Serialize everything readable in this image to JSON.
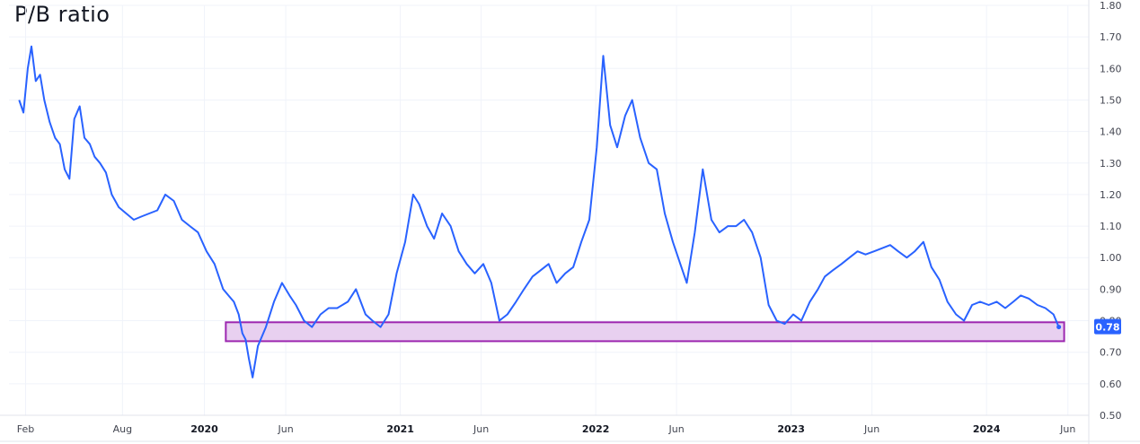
{
  "chart_data": {
    "type": "line",
    "title": "P/B ratio",
    "xlabel": "",
    "ylabel": "",
    "ylim": [
      0.5,
      1.8
    ],
    "y_ticks": [
      "1.80",
      "1.70",
      "1.60",
      "1.50",
      "1.40",
      "1.30",
      "1.20",
      "1.10",
      "1.00",
      "0.90",
      "0.80",
      "0.70",
      "0.60",
      "0.50"
    ],
    "x_ticks": [
      {
        "label": "Feb",
        "date": "2019-02-01",
        "year": false
      },
      {
        "label": "Aug",
        "date": "2019-08-01",
        "year": false
      },
      {
        "label": "2020",
        "date": "2020-01-01",
        "year": true
      },
      {
        "label": "Jun",
        "date": "2020-06-01",
        "year": false
      },
      {
        "label": "2021",
        "date": "2021-01-01",
        "year": true
      },
      {
        "label": "Jun",
        "date": "2021-06-01",
        "year": false
      },
      {
        "label": "2022",
        "date": "2022-01-01",
        "year": true
      },
      {
        "label": "Jun",
        "date": "2022-06-01",
        "year": false
      },
      {
        "label": "2023",
        "date": "2023-01-01",
        "year": true
      },
      {
        "label": "Jun",
        "date": "2023-06-01",
        "year": false
      },
      {
        "label": "2024",
        "date": "2024-01-01",
        "year": true
      },
      {
        "label": "Jun",
        "date": "2024-06-01",
        "year": false
      }
    ],
    "xlim": [
      "2019-01-01",
      "2024-07-10"
    ],
    "grid": true,
    "line_color": "#2962ff",
    "series": [
      {
        "x": [
          "2019-01-20",
          "2019-01-28",
          "2019-02-05",
          "2019-02-12",
          "2019-02-20",
          "2019-02-28",
          "2019-03-08",
          "2019-03-18",
          "2019-03-28",
          "2019-04-06",
          "2019-04-15",
          "2019-04-24",
          "2019-05-03",
          "2019-05-13",
          "2019-05-22",
          "2019-06-01",
          "2019-06-10",
          "2019-06-20",
          "2019-07-01",
          "2019-07-12",
          "2019-07-25",
          "2019-08-08",
          "2019-08-22",
          "2019-09-05",
          "2019-09-20",
          "2019-10-05",
          "2019-10-20",
          "2019-11-05",
          "2019-11-20",
          "2019-12-05",
          "2019-12-20",
          "2020-01-05",
          "2020-01-20",
          "2020-02-05",
          "2020-02-15",
          "2020-02-25",
          "2020-03-05",
          "2020-03-12",
          "2020-03-18",
          "2020-03-24",
          "2020-03-31",
          "2020-04-10",
          "2020-04-25",
          "2020-05-10",
          "2020-05-25",
          "2020-06-08",
          "2020-06-20",
          "2020-07-05",
          "2020-07-20",
          "2020-08-05",
          "2020-08-20",
          "2020-09-05",
          "2020-09-25",
          "2020-10-10",
          "2020-10-28",
          "2020-11-10",
          "2020-11-25",
          "2020-12-10",
          "2020-12-25",
          "2021-01-10",
          "2021-01-25",
          "2021-02-05",
          "2021-02-20",
          "2021-03-05",
          "2021-03-20",
          "2021-04-05",
          "2021-04-20",
          "2021-05-05",
          "2021-05-20",
          "2021-06-05",
          "2021-06-20",
          "2021-07-05",
          "2021-07-20",
          "2021-08-05",
          "2021-08-20",
          "2021-09-05",
          "2021-09-20",
          "2021-10-05",
          "2021-10-20",
          "2021-11-05",
          "2021-11-20",
          "2021-12-05",
          "2021-12-20",
          "2022-01-03",
          "2022-01-15",
          "2022-01-28",
          "2022-02-10",
          "2022-02-25",
          "2022-03-10",
          "2022-03-25",
          "2022-04-10",
          "2022-04-25",
          "2022-05-10",
          "2022-05-25",
          "2022-06-08",
          "2022-06-20",
          "2022-07-05",
          "2022-07-20",
          "2022-08-05",
          "2022-08-20",
          "2022-09-05",
          "2022-09-20",
          "2022-10-05",
          "2022-10-20",
          "2022-11-05",
          "2022-11-20",
          "2022-12-05",
          "2022-12-20",
          "2023-01-05",
          "2023-01-20",
          "2023-02-05",
          "2023-02-20",
          "2023-03-05",
          "2023-03-20",
          "2023-04-05",
          "2023-04-20",
          "2023-05-05",
          "2023-05-20",
          "2023-06-05",
          "2023-06-20",
          "2023-07-05",
          "2023-07-20",
          "2023-08-05",
          "2023-08-20",
          "2023-09-05",
          "2023-09-20",
          "2023-10-05",
          "2023-10-20",
          "2023-11-05",
          "2023-11-20",
          "2023-12-05",
          "2023-12-20",
          "2024-01-05",
          "2024-01-20",
          "2024-02-05",
          "2024-02-20",
          "2024-03-05",
          "2024-03-20",
          "2024-04-05",
          "2024-04-20",
          "2024-05-05",
          "2024-05-15"
        ],
        "y": [
          1.5,
          1.46,
          1.6,
          1.67,
          1.56,
          1.58,
          1.5,
          1.43,
          1.38,
          1.36,
          1.28,
          1.25,
          1.44,
          1.48,
          1.38,
          1.36,
          1.32,
          1.3,
          1.27,
          1.2,
          1.16,
          1.14,
          1.12,
          1.13,
          1.14,
          1.15,
          1.2,
          1.18,
          1.12,
          1.1,
          1.08,
          1.02,
          0.98,
          0.9,
          0.88,
          0.86,
          0.82,
          0.76,
          0.74,
          0.68,
          0.62,
          0.72,
          0.78,
          0.86,
          0.92,
          0.88,
          0.85,
          0.8,
          0.78,
          0.82,
          0.84,
          0.84,
          0.86,
          0.9,
          0.82,
          0.8,
          0.78,
          0.82,
          0.95,
          1.05,
          1.2,
          1.17,
          1.1,
          1.06,
          1.14,
          1.1,
          1.02,
          0.98,
          0.95,
          0.98,
          0.92,
          0.8,
          0.82,
          0.86,
          0.9,
          0.94,
          0.96,
          0.98,
          0.92,
          0.95,
          0.97,
          1.05,
          1.12,
          1.35,
          1.64,
          1.42,
          1.35,
          1.45,
          1.5,
          1.38,
          1.3,
          1.28,
          1.14,
          1.05,
          0.98,
          0.92,
          1.08,
          1.28,
          1.12,
          1.08,
          1.1,
          1.1,
          1.12,
          1.08,
          1.0,
          0.85,
          0.8,
          0.79,
          0.82,
          0.8,
          0.86,
          0.9,
          0.94,
          0.96,
          0.98,
          1.0,
          1.02,
          1.01,
          1.02,
          1.03,
          1.04,
          1.02,
          1.0,
          1.02,
          1.05,
          0.97,
          0.93,
          0.86,
          0.82,
          0.8,
          0.85,
          0.86,
          0.85,
          0.86,
          0.84,
          0.86,
          0.88,
          0.87,
          0.85,
          0.84,
          0.82,
          0.78
        ]
      }
    ],
    "highlight_band": {
      "x0": "2020-02-10",
      "x1": "2024-05-25",
      "y0": 0.735,
      "y1": 0.795,
      "fill": "#e8d0f0",
      "stroke": "#9c27b0"
    },
    "last_value": "0.78",
    "last_value_bg": "#2962ff",
    "hidden_tick_label": "0.80"
  }
}
